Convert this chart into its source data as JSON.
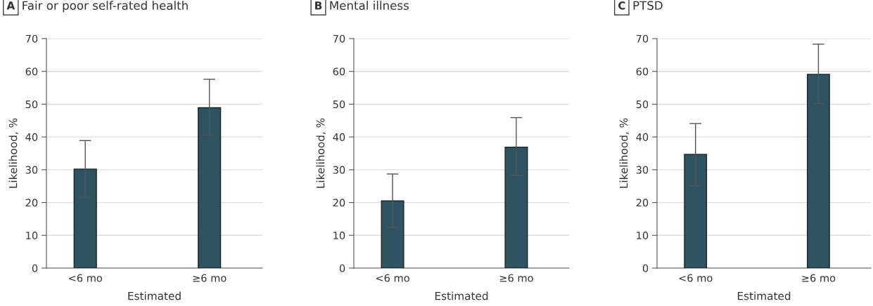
{
  "chart_data": [
    {
      "type": "bar",
      "title": "Fair or poor self-rated health",
      "annotations": [
        "A"
      ],
      "xlabel": "Estimated",
      "ylabel": "Likelihood, %",
      "categories": [
        "<6 mo",
        "≥6 mo"
      ],
      "values": [
        30.2,
        48.9
      ],
      "errors": [
        [
          21.6,
          38.9
        ],
        [
          40.6,
          57.6
        ]
      ],
      "color": "#2e5462",
      "ylim": [
        0,
        70
      ],
      "yticks": [
        0,
        10,
        20,
        30,
        40,
        50,
        60,
        70
      ],
      "grid": "y"
    },
    {
      "type": "bar",
      "title": "Mental illness",
      "annotations": [
        "B"
      ],
      "xlabel": "Estimated",
      "ylabel": "Likelihood, %",
      "categories": [
        "<6 mo",
        "≥6 mo"
      ],
      "values": [
        20.5,
        36.9
      ],
      "errors": [
        [
          12.4,
          28.7
        ],
        [
          28.3,
          45.9
        ]
      ],
      "color": "#2e5462",
      "ylim": [
        0,
        70
      ],
      "yticks": [
        0,
        10,
        20,
        30,
        40,
        50,
        60,
        70
      ],
      "grid": "y"
    },
    {
      "type": "bar",
      "title": "PTSD",
      "annotations": [
        "C"
      ],
      "xlabel": "Estimated",
      "ylabel": "Likelihood, %",
      "categories": [
        "<6 mo",
        "≥6 mo"
      ],
      "values": [
        34.7,
        59.1
      ],
      "errors": [
        [
          25.2,
          44.1
        ],
        [
          50.2,
          68.3
        ]
      ],
      "color": "#2e5462",
      "ylim": [
        0,
        70
      ],
      "yticks": [
        0,
        10,
        20,
        30,
        40,
        50,
        60,
        70
      ],
      "grid": "y"
    }
  ]
}
